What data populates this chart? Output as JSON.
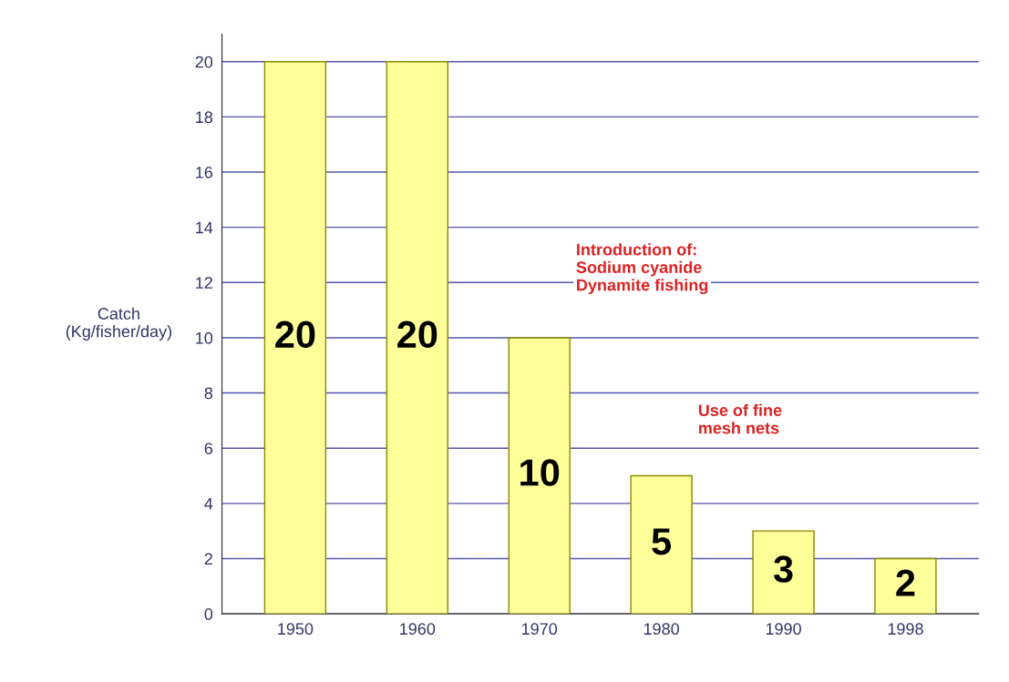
{
  "chart_data": {
    "type": "bar",
    "ylabel": "Catch\n(Kg/fisher/day)",
    "categories": [
      "1950",
      "1960",
      "1970",
      "1980",
      "1990",
      "1998"
    ],
    "values": [
      20,
      20,
      10,
      5,
      3,
      2
    ],
    "color": "#ffff99",
    "data_labels": true,
    "ylim": [
      0,
      21
    ],
    "yticks": [
      0,
      2,
      4,
      6,
      8,
      10,
      12,
      14,
      16,
      18,
      20
    ],
    "grid": "y",
    "annotations": [
      "Introduction of:\nSodium cyanide\nDynamite fishing",
      "Use of fine\nmesh nets"
    ]
  }
}
